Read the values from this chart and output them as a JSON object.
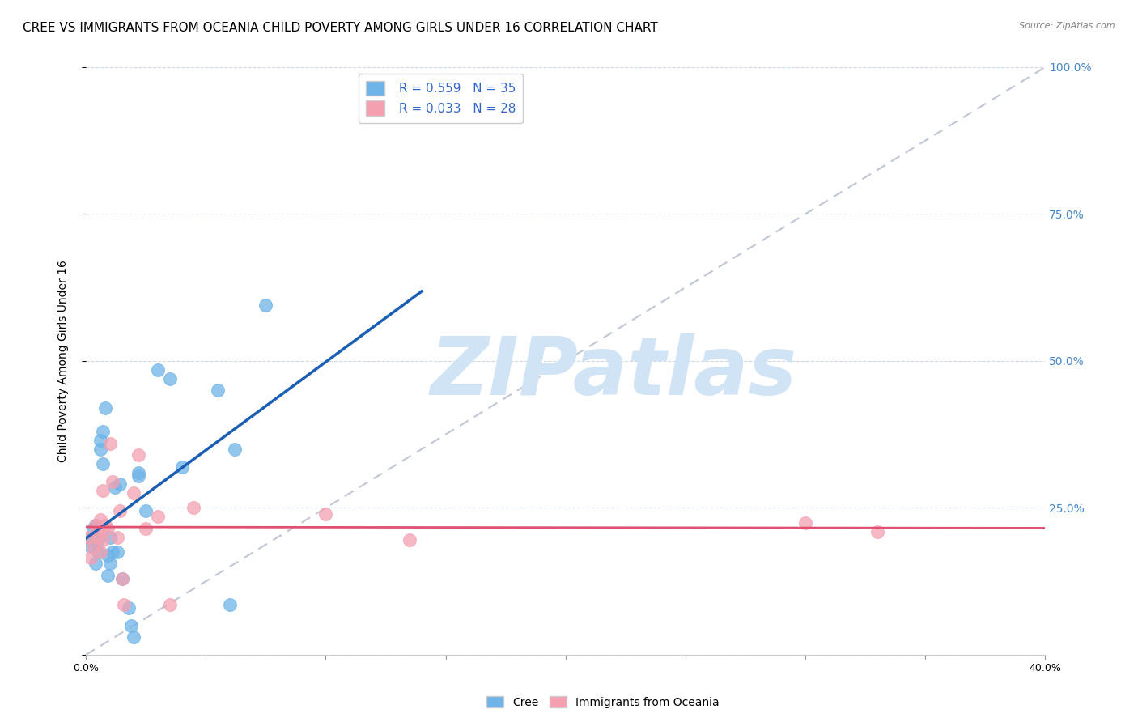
{
  "title": "CREE VS IMMIGRANTS FROM OCEANIA CHILD POVERTY AMONG GIRLS UNDER 16 CORRELATION CHART",
  "source": "Source: ZipAtlas.com",
  "ylabel": "Child Poverty Among Girls Under 16",
  "xlim": [
    0.0,
    0.4
  ],
  "ylim": [
    0.0,
    1.0
  ],
  "yticks": [
    0.0,
    0.25,
    0.5,
    0.75,
    1.0
  ],
  "ytick_labels": [
    "",
    "25.0%",
    "50.0%",
    "75.0%",
    "100.0%"
  ],
  "xticks": [
    0.0,
    0.05,
    0.1,
    0.15,
    0.2,
    0.25,
    0.3,
    0.35,
    0.4
  ],
  "xtick_labels": [
    "0.0%",
    "",
    "",
    "",
    "",
    "",
    "",
    "",
    "40.0%"
  ],
  "cree_R": 0.559,
  "cree_N": 35,
  "oceania_R": 0.033,
  "oceania_N": 28,
  "cree_color": "#6eb4e8",
  "oceania_color": "#f4a0b0",
  "trendline_cree_color": "#1a5fb4",
  "trendline_oceania_color": "#e05070",
  "diagonal_color": "#b0b8c8",
  "background_color": "#ffffff",
  "grid_color": "#d0d8e8",
  "cree_x": [
    0.001,
    0.002,
    0.003,
    0.003,
    0.004,
    0.004,
    0.005,
    0.005,
    0.006,
    0.006,
    0.007,
    0.007,
    0.008,
    0.009,
    0.009,
    0.01,
    0.01,
    0.011,
    0.012,
    0.013,
    0.014,
    0.015,
    0.018,
    0.019,
    0.02,
    0.022,
    0.022,
    0.025,
    0.03,
    0.035,
    0.04,
    0.055,
    0.06,
    0.062,
    0.075
  ],
  "cree_y": [
    0.195,
    0.185,
    0.215,
    0.2,
    0.155,
    0.22,
    0.195,
    0.175,
    0.365,
    0.35,
    0.38,
    0.325,
    0.42,
    0.135,
    0.17,
    0.2,
    0.155,
    0.175,
    0.285,
    0.175,
    0.29,
    0.13,
    0.08,
    0.05,
    0.03,
    0.305,
    0.31,
    0.245,
    0.485,
    0.47,
    0.32,
    0.45,
    0.085,
    0.35,
    0.595
  ],
  "oceania_x": [
    0.001,
    0.002,
    0.003,
    0.004,
    0.005,
    0.005,
    0.006,
    0.006,
    0.007,
    0.007,
    0.008,
    0.009,
    0.01,
    0.011,
    0.013,
    0.014,
    0.015,
    0.016,
    0.02,
    0.022,
    0.025,
    0.03,
    0.035,
    0.045,
    0.1,
    0.135,
    0.3,
    0.33
  ],
  "oceania_y": [
    0.2,
    0.165,
    0.185,
    0.22,
    0.2,
    0.215,
    0.23,
    0.175,
    0.195,
    0.28,
    0.22,
    0.215,
    0.36,
    0.295,
    0.2,
    0.245,
    0.13,
    0.085,
    0.275,
    0.34,
    0.215,
    0.235,
    0.085,
    0.25,
    0.24,
    0.195,
    0.225,
    0.21
  ],
  "legend_label_cree": "Cree",
  "legend_label_oceania": "Immigrants from Oceania",
  "title_fontsize": 11,
  "axis_label_fontsize": 10,
  "tick_fontsize": 9,
  "legend_fontsize": 11,
  "watermark_text": "ZIPatlas",
  "watermark_color": "#d0e4f5",
  "watermark_fontsize": 72
}
